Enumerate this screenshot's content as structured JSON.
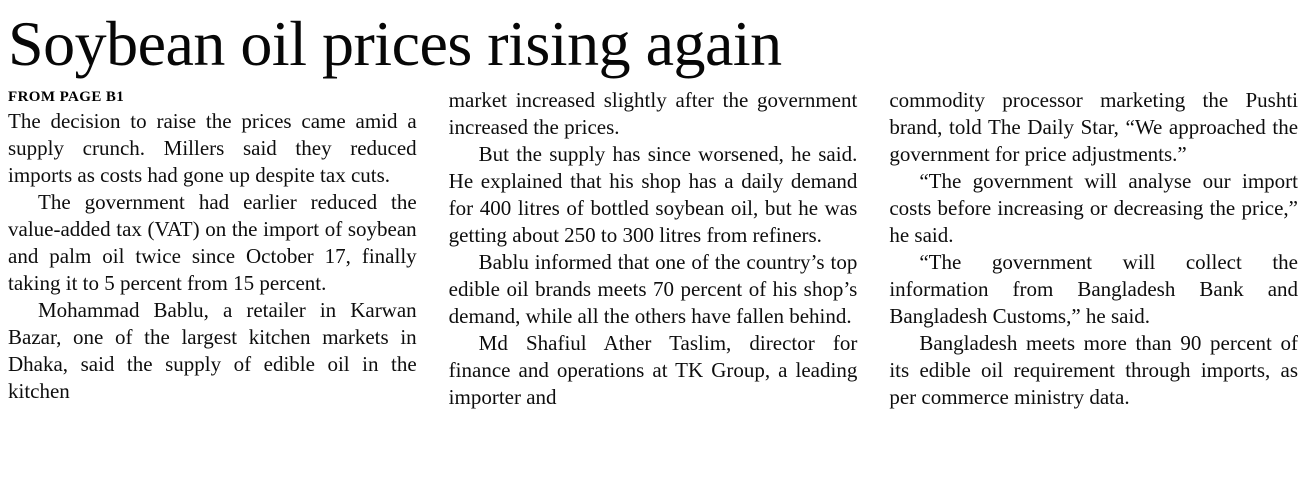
{
  "article": {
    "headline": "Soybean oil prices rising again",
    "kicker": "FROM PAGE B1",
    "columns": [
      {
        "paragraphs": [
          "The decision to raise the prices came amid a supply crunch. Millers said they reduced imports as costs had gone up despite tax cuts.",
          "The government had earlier reduced the value-added tax (VAT) on the import of soybean and palm oil twice since October 17, finally taking it to 5 percent from 15 percent.",
          "Mohammad Bablu, a retailer in Karwan Bazar, one of the largest kitchen markets in Dhaka, said the supply of edible oil in the kitchen"
        ]
      },
      {
        "paragraphs": [
          "market increased slightly after the government increased the prices.",
          "But the supply has since worsened, he said. He explained that his shop has a daily demand for 400 litres of bottled soybean oil, but he was getting about 250 to 300 litres from refiners.",
          "Bablu informed that one of the country’s top edible oil brands meets 70 percent of his shop’s demand, while all the others have fallen behind.",
          "Md Shafiul Ather Taslim, director for finance and operations at TK Group, a leading importer and"
        ]
      },
      {
        "paragraphs": [
          "commodity processor marketing the Pushti brand, told The Daily Star, “We approached the government for price adjustments.”",
          "“The government will analyse our import costs before increasing or decreasing the price,” he said.",
          "“The government will collect the information from Bangladesh Bank and Bangladesh Customs,” he said.",
          "Bangladesh meets more than 90 percent of its edible oil requirement through imports, as per commerce ministry data."
        ]
      }
    ]
  }
}
